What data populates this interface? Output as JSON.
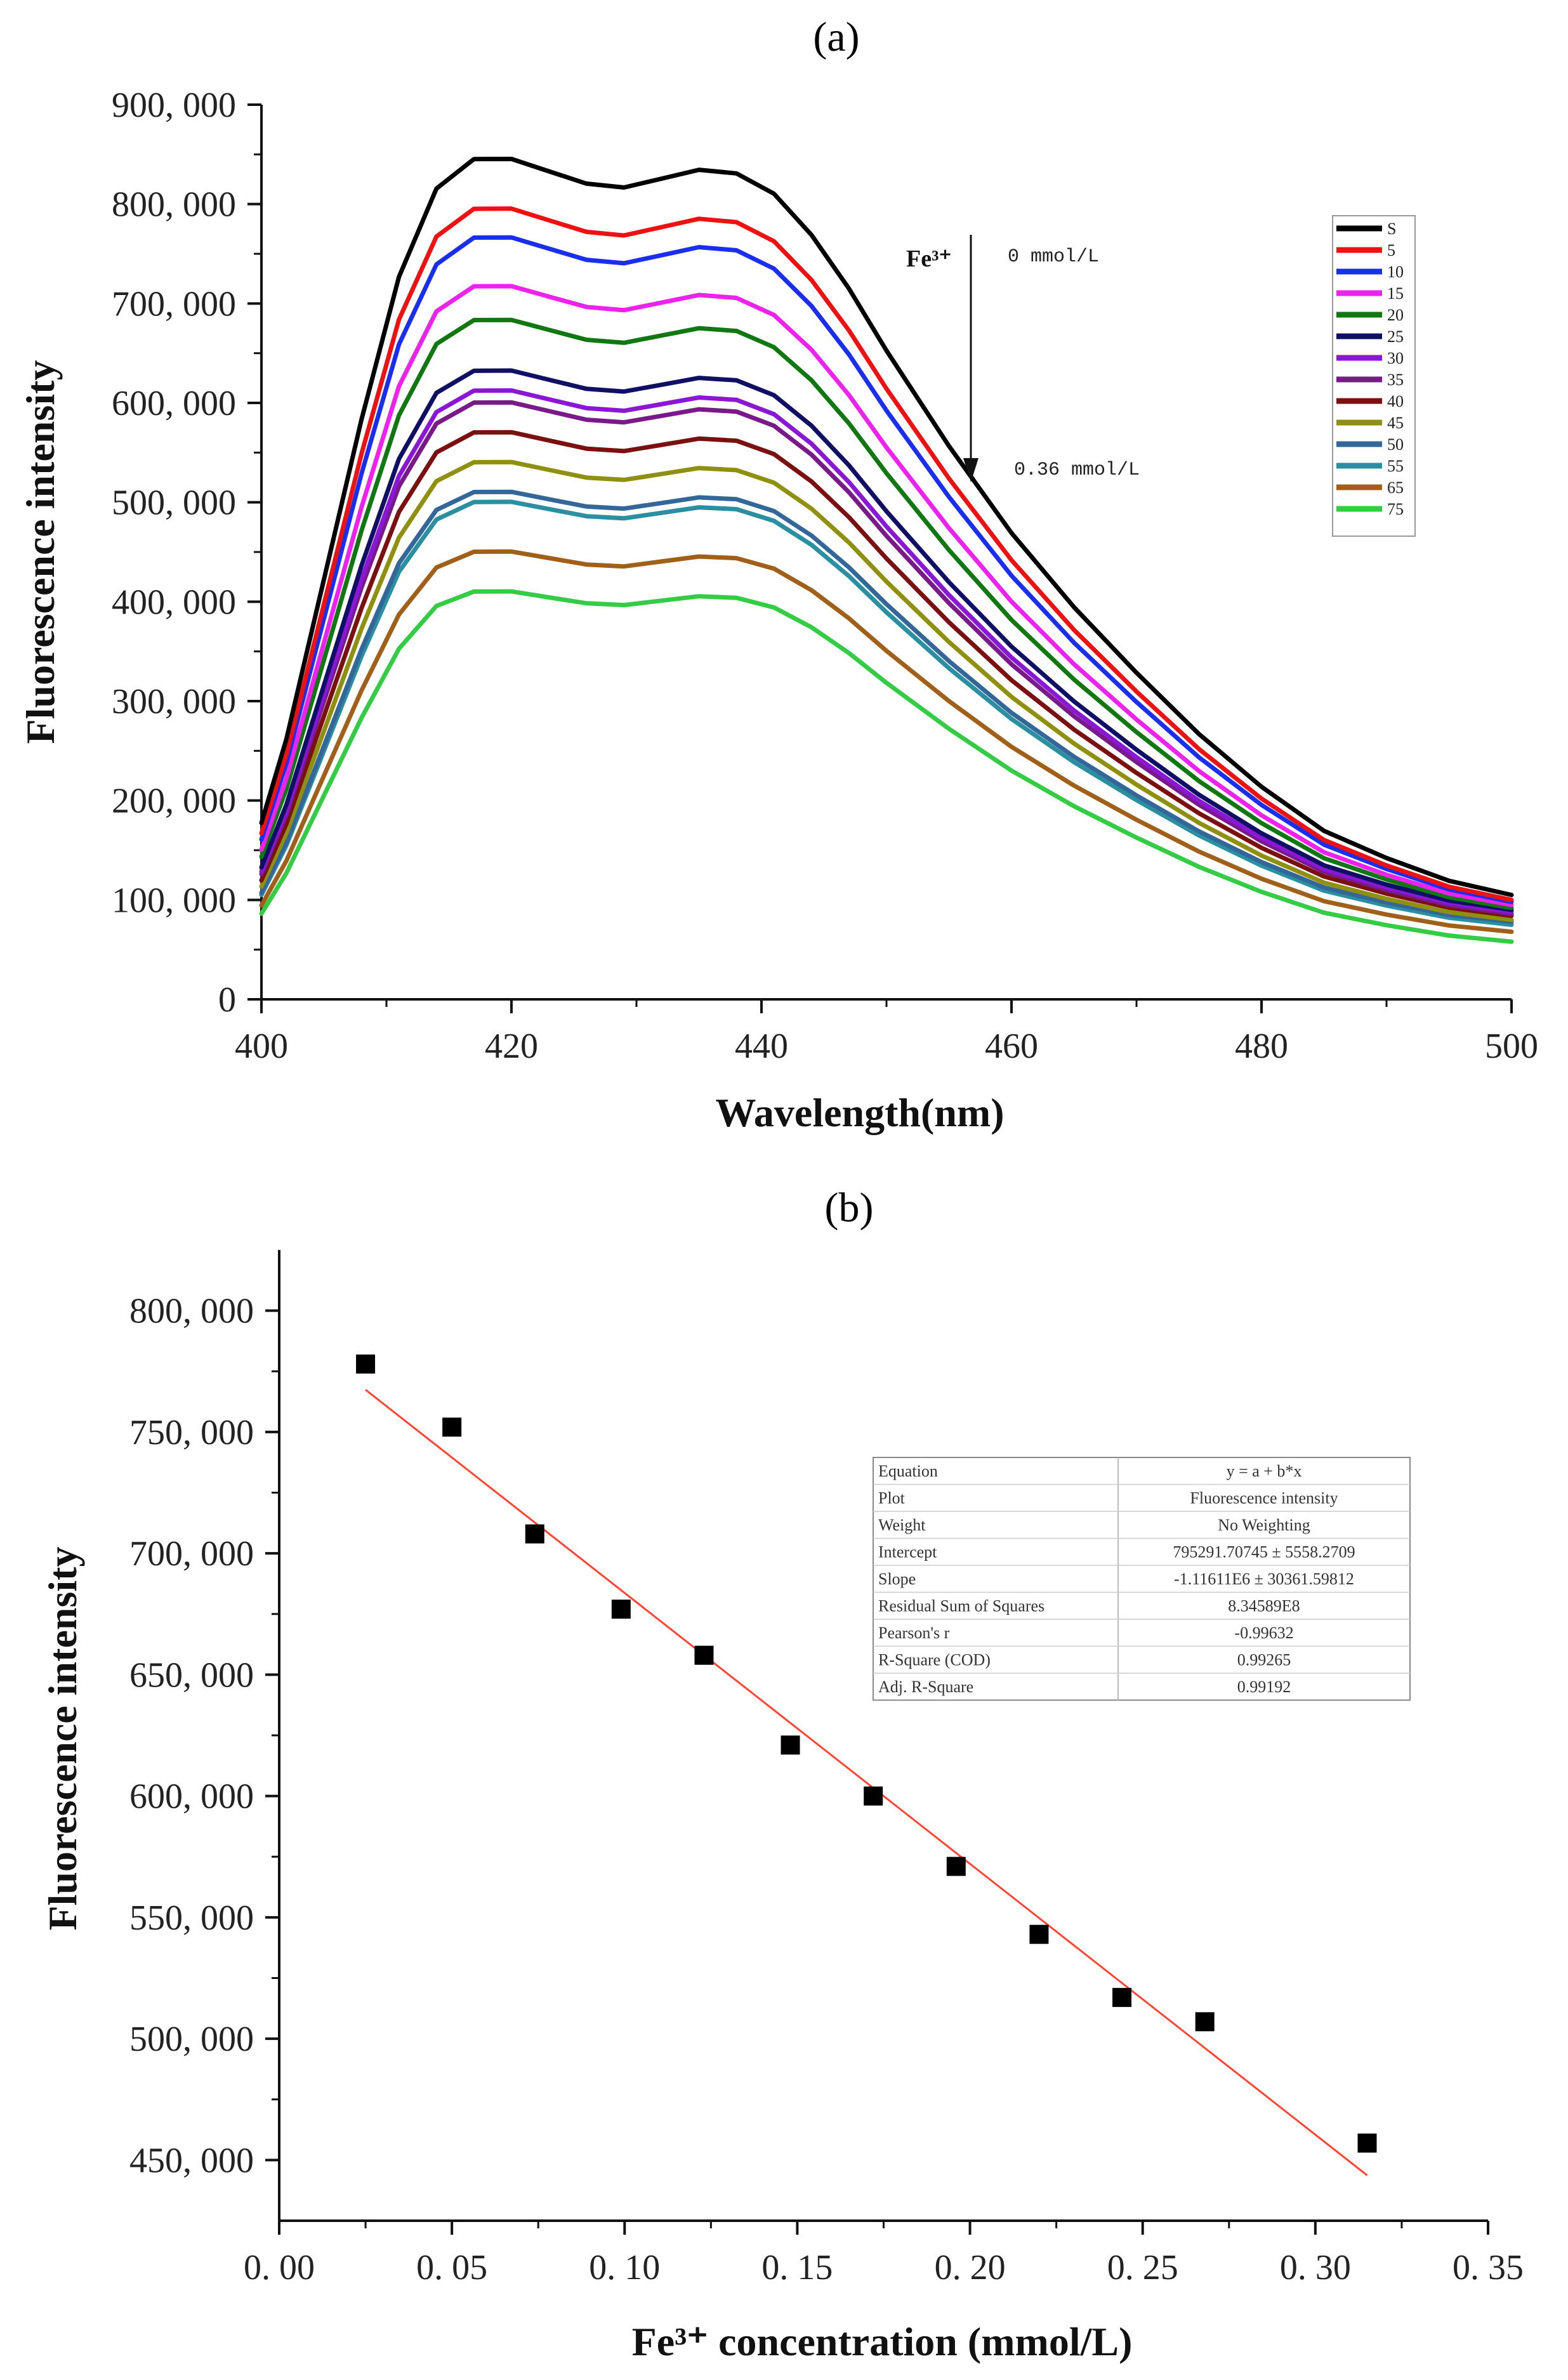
{
  "chart_data": [
    {
      "panel_label": "(a)",
      "type": "line",
      "xlabel": "Wavelength(nm)",
      "ylabel": "Fluorescence intensity",
      "xlim": [
        400,
        500
      ],
      "ylim": [
        0,
        900000
      ],
      "x_ticks": [
        {
          "value": 400,
          "label": "400"
        },
        {
          "value": 420,
          "label": "420"
        },
        {
          "value": 440,
          "label": "440"
        },
        {
          "value": 460,
          "label": "460"
        },
        {
          "value": 480,
          "label": "480"
        },
        {
          "value": 500,
          "label": "500"
        }
      ],
      "y_ticks": [
        {
          "value": 0,
          "label": "0"
        },
        {
          "value": 100000,
          "label": "100, 000"
        },
        {
          "value": 200000,
          "label": "200, 000"
        },
        {
          "value": 300000,
          "label": "300, 000"
        },
        {
          "value": 400000,
          "label": "400, 000"
        },
        {
          "value": 500000,
          "label": "500, 000"
        },
        {
          "value": 600000,
          "label": "600, 000"
        },
        {
          "value": 700000,
          "label": "700, 000"
        },
        {
          "value": 800000,
          "label": "800, 000"
        },
        {
          "value": 900000,
          "label": "900, 000"
        }
      ],
      "annotations": {
        "fe_label": "Fe³⁺",
        "start_conc": "0 mmol/L",
        "end_conc": "0.36 mmol/L"
      },
      "x": [
        400,
        402,
        405,
        408,
        411,
        414,
        417,
        420,
        423,
        426,
        429,
        432,
        435,
        438,
        441,
        444,
        447,
        450,
        455,
        460,
        465,
        470,
        475,
        480,
        485,
        490,
        495,
        500
      ],
      "shape": [
        0.21,
        0.31,
        0.5,
        0.69,
        0.86,
        0.965,
        1.0,
        1.0,
        0.985,
        0.97,
        0.965,
        0.975,
        0.985,
        0.98,
        0.955,
        0.905,
        0.84,
        0.765,
        0.65,
        0.545,
        0.455,
        0.375,
        0.3,
        0.235,
        0.18,
        0.145,
        0.115,
        0.095
      ],
      "series": [
        {
          "name": "S",
          "color": "#000000",
          "peak": 845000,
          "end": 105000
        },
        {
          "name": "5",
          "color": "#ee1111",
          "peak": 795000,
          "end": 100000
        },
        {
          "name": "10",
          "color": "#1a2fee",
          "peak": 766000,
          "end": 98000
        },
        {
          "name": "15",
          "color": "#ee22ee",
          "peak": 717000,
          "end": 95000
        },
        {
          "name": "20",
          "color": "#117711",
          "peak": 683000,
          "end": 92000
        },
        {
          "name": "25",
          "color": "#0f0f66",
          "peak": 632000,
          "end": 90000
        },
        {
          "name": "30",
          "color": "#8a16d6",
          "peak": 612000,
          "end": 88000
        },
        {
          "name": "35",
          "color": "#7a1a8a",
          "peak": 600000,
          "end": 86000
        },
        {
          "name": "40",
          "color": "#7a1010",
          "peak": 570000,
          "end": 84000
        },
        {
          "name": "45",
          "color": "#8f8f10",
          "peak": 540000,
          "end": 80000
        },
        {
          "name": "50",
          "color": "#336699",
          "peak": 510000,
          "end": 78000
        },
        {
          "name": "55",
          "color": "#2a8fa0",
          "peak": 500000,
          "end": 75000
        },
        {
          "name": "65",
          "color": "#a0601a",
          "peak": 450000,
          "end": 68000
        },
        {
          "name": "75",
          "color": "#33cc44",
          "peak": 410000,
          "end": 58000
        }
      ]
    },
    {
      "panel_label": "(b)",
      "type": "scatter",
      "xlabel": "Fe³⁺ concentration (mmol/L)",
      "ylabel": "Fluorescence intensity",
      "xlim": [
        0,
        0.35
      ],
      "ylim": [
        425000,
        825000
      ],
      "x_ticks": [
        {
          "value": 0.0,
          "label": "0. 00"
        },
        {
          "value": 0.05,
          "label": "0. 05"
        },
        {
          "value": 0.1,
          "label": "0. 10"
        },
        {
          "value": 0.15,
          "label": "0. 15"
        },
        {
          "value": 0.2,
          "label": "0. 20"
        },
        {
          "value": 0.25,
          "label": "0. 25"
        },
        {
          "value": 0.3,
          "label": "0. 30"
        },
        {
          "value": 0.35,
          "label": "0. 35"
        }
      ],
      "y_ticks": [
        {
          "value": 450000,
          "label": "450, 000"
        },
        {
          "value": 500000,
          "label": "500, 000"
        },
        {
          "value": 550000,
          "label": "550, 000"
        },
        {
          "value": 600000,
          "label": "600, 000"
        },
        {
          "value": 650000,
          "label": "650, 000"
        },
        {
          "value": 700000,
          "label": "700, 000"
        },
        {
          "value": 750000,
          "label": "750, 000"
        },
        {
          "value": 800000,
          "label": "800, 000"
        }
      ],
      "points": [
        {
          "x": 0.025,
          "y": 778000
        },
        {
          "x": 0.05,
          "y": 752000
        },
        {
          "x": 0.074,
          "y": 708000
        },
        {
          "x": 0.099,
          "y": 677000
        },
        {
          "x": 0.123,
          "y": 658000
        },
        {
          "x": 0.148,
          "y": 621000
        },
        {
          "x": 0.172,
          "y": 600000
        },
        {
          "x": 0.196,
          "y": 571000
        },
        {
          "x": 0.22,
          "y": 543000
        },
        {
          "x": 0.244,
          "y": 517000
        },
        {
          "x": 0.268,
          "y": 507000
        },
        {
          "x": 0.315,
          "y": 457000
        }
      ],
      "fit": {
        "intercept": 795291.70745,
        "slope": -1116110,
        "x_range": [
          0.025,
          0.315
        ],
        "color": "#ff4433"
      },
      "fit_table": [
        [
          "Equation",
          "y = a + b*x"
        ],
        [
          "Plot",
          "Fluorescence intensity"
        ],
        [
          "Weight",
          "No Weighting"
        ],
        [
          "Intercept",
          "795291.70745 ± 5558.2709"
        ],
        [
          "Slope",
          "-1.11611E6 ± 30361.59812"
        ],
        [
          "Residual Sum of Squares",
          "8.34589E8"
        ],
        [
          "Pearson's r",
          "-0.99632"
        ],
        [
          "R-Square (COD)",
          "0.99265"
        ],
        [
          "Adj. R-Square",
          "0.99192"
        ]
      ]
    }
  ]
}
